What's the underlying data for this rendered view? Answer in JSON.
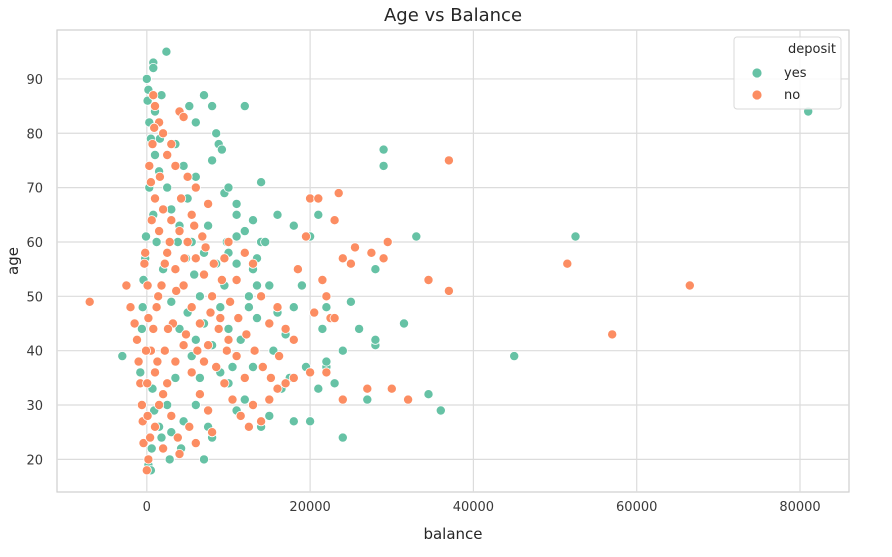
{
  "chart_data": {
    "type": "scatter",
    "title": "Age vs Balance",
    "xlabel": "balance",
    "ylabel": "age",
    "xlim": [
      -11000,
      86000
    ],
    "ylim": [
      14,
      99
    ],
    "xticks": [
      0,
      20000,
      40000,
      60000,
      80000
    ],
    "yticks": [
      20,
      30,
      40,
      50,
      60,
      70,
      80,
      90
    ],
    "grid": true,
    "legend": {
      "title": "deposit",
      "position": "top-right"
    },
    "colors": {
      "yes": "#66c2a5",
      "no": "#fc8d62"
    },
    "series": [
      {
        "name": "yes",
        "points": [
          [
            0,
            90
          ],
          [
            800,
            93
          ],
          [
            800,
            92
          ],
          [
            2400,
            95
          ],
          [
            200,
            88
          ],
          [
            1800,
            87
          ],
          [
            5200,
            85
          ],
          [
            7000,
            87
          ],
          [
            8000,
            85
          ],
          [
            12000,
            85
          ],
          [
            4000,
            84
          ],
          [
            6000,
            82
          ],
          [
            8500,
            80
          ],
          [
            8800,
            78
          ],
          [
            9200,
            77
          ],
          [
            8000,
            75
          ],
          [
            14000,
            71
          ],
          [
            9500,
            69
          ],
          [
            11000,
            67
          ],
          [
            16000,
            65
          ],
          [
            21000,
            65
          ],
          [
            20000,
            61
          ],
          [
            18000,
            63
          ],
          [
            13000,
            64
          ],
          [
            12000,
            62
          ],
          [
            14000,
            60
          ],
          [
            10000,
            58
          ],
          [
            11000,
            56
          ],
          [
            13000,
            55
          ],
          [
            15000,
            52
          ],
          [
            18000,
            48
          ],
          [
            22000,
            48
          ],
          [
            25000,
            49
          ],
          [
            28000,
            55
          ],
          [
            29000,
            77
          ],
          [
            29000,
            74
          ],
          [
            33000,
            61
          ],
          [
            52500,
            61
          ],
          [
            81000,
            84
          ],
          [
            45000,
            39
          ],
          [
            36000,
            29
          ],
          [
            34500,
            32
          ],
          [
            31500,
            45
          ],
          [
            27000,
            31
          ],
          [
            28000,
            41
          ],
          [
            28000,
            42
          ],
          [
            24000,
            40
          ],
          [
            24000,
            24
          ],
          [
            22000,
            37
          ],
          [
            21000,
            33
          ],
          [
            20000,
            27
          ],
          [
            23000,
            34
          ],
          [
            18000,
            27
          ],
          [
            15000,
            28
          ],
          [
            14000,
            26
          ],
          [
            12000,
            31
          ],
          [
            10000,
            34
          ],
          [
            9000,
            36
          ],
          [
            8000,
            24
          ],
          [
            7000,
            20
          ],
          [
            7500,
            26
          ],
          [
            -3000,
            39
          ],
          [
            -800,
            36
          ],
          [
            -600,
            44
          ],
          [
            -500,
            48
          ],
          [
            -400,
            53
          ],
          [
            200,
            19
          ],
          [
            500,
            18
          ],
          [
            600,
            22
          ],
          [
            1500,
            26
          ],
          [
            3000,
            25
          ],
          [
            4500,
            27
          ],
          [
            6000,
            30
          ],
          [
            10500,
            37
          ],
          [
            11500,
            42
          ],
          [
            13500,
            46
          ],
          [
            12500,
            50
          ],
          [
            9500,
            52
          ],
          [
            8500,
            56
          ],
          [
            7000,
            58
          ],
          [
            5500,
            60
          ],
          [
            4000,
            63
          ],
          [
            3000,
            66
          ],
          [
            2500,
            70
          ],
          [
            1500,
            73
          ],
          [
            1000,
            76
          ],
          [
            500,
            79
          ],
          [
            300,
            82
          ],
          [
            2000,
            80
          ],
          [
            3500,
            78
          ],
          [
            4500,
            74
          ],
          [
            6000,
            72
          ],
          [
            5000,
            68
          ],
          [
            16500,
            33
          ],
          [
            19500,
            37
          ],
          [
            17000,
            43
          ],
          [
            15500,
            40
          ],
          [
            13000,
            37
          ],
          [
            11000,
            29
          ],
          [
            10000,
            44
          ],
          [
            9000,
            48
          ],
          [
            8000,
            41
          ],
          [
            7000,
            45
          ],
          [
            6500,
            50
          ],
          [
            5800,
            54
          ],
          [
            4800,
            57
          ],
          [
            3800,
            60
          ],
          [
            14500,
            60
          ],
          [
            13500,
            52
          ],
          [
            16000,
            47
          ],
          [
            21500,
            44
          ],
          [
            19000,
            52
          ],
          [
            22000,
            38
          ],
          [
            26000,
            44
          ],
          [
            17500,
            35
          ],
          [
            12500,
            48
          ],
          [
            11000,
            61
          ],
          [
            9800,
            60
          ],
          [
            13500,
            57
          ],
          [
            6500,
            35
          ],
          [
            5500,
            39
          ],
          [
            4000,
            44
          ],
          [
            3000,
            49
          ],
          [
            2000,
            55
          ],
          [
            1200,
            60
          ],
          [
            800,
            65
          ],
          [
            300,
            70
          ],
          [
            -100,
            61
          ],
          [
            -200,
            57
          ],
          [
            100,
            86
          ],
          [
            1000,
            84
          ],
          [
            1600,
            79
          ],
          [
            7500,
            63
          ],
          [
            10000,
            70
          ],
          [
            11000,
            65
          ],
          [
            2500,
            30
          ],
          [
            3500,
            35
          ],
          [
            4200,
            22
          ],
          [
            2800,
            20
          ],
          [
            1800,
            24
          ],
          [
            900,
            29
          ],
          [
            700,
            33
          ],
          [
            5000,
            47
          ],
          [
            6000,
            42
          ]
        ]
      },
      {
        "name": "no",
        "points": [
          [
            -7000,
            49
          ],
          [
            -2500,
            52
          ],
          [
            -2000,
            48
          ],
          [
            -1500,
            45
          ],
          [
            -1200,
            42
          ],
          [
            -1000,
            38
          ],
          [
            -800,
            34
          ],
          [
            -600,
            30
          ],
          [
            -500,
            27
          ],
          [
            -400,
            23
          ],
          [
            -300,
            56
          ],
          [
            -200,
            58
          ],
          [
            0,
            18
          ],
          [
            200,
            20
          ],
          [
            400,
            24
          ],
          [
            800,
            87
          ],
          [
            1000,
            85
          ],
          [
            1500,
            82
          ],
          [
            2000,
            80
          ],
          [
            3000,
            78
          ],
          [
            4000,
            84
          ],
          [
            4500,
            83
          ],
          [
            2500,
            76
          ],
          [
            3500,
            74
          ],
          [
            5000,
            72
          ],
          [
            6000,
            70
          ],
          [
            7500,
            67
          ],
          [
            5500,
            65
          ],
          [
            10000,
            60
          ],
          [
            12000,
            58
          ],
          [
            13000,
            56
          ],
          [
            11000,
            53
          ],
          [
            14000,
            50
          ],
          [
            16000,
            48
          ],
          [
            15000,
            45
          ],
          [
            17000,
            44
          ],
          [
            18000,
            42
          ],
          [
            19500,
            61
          ],
          [
            18500,
            55
          ],
          [
            20000,
            68
          ],
          [
            21000,
            68
          ],
          [
            23500,
            69
          ],
          [
            23000,
            64
          ],
          [
            21500,
            53
          ],
          [
            22000,
            50
          ],
          [
            20500,
            47
          ],
          [
            22500,
            46
          ],
          [
            23000,
            46
          ],
          [
            25000,
            56
          ],
          [
            25500,
            59
          ],
          [
            24000,
            57
          ],
          [
            29500,
            60
          ],
          [
            29000,
            57
          ],
          [
            27500,
            58
          ],
          [
            37000,
            75
          ],
          [
            37000,
            51
          ],
          [
            34500,
            53
          ],
          [
            51500,
            56
          ],
          [
            66500,
            52
          ],
          [
            57000,
            43
          ],
          [
            32000,
            31
          ],
          [
            30000,
            33
          ],
          [
            27000,
            33
          ],
          [
            24000,
            31
          ],
          [
            22000,
            36
          ],
          [
            20000,
            36
          ],
          [
            18000,
            35
          ],
          [
            17000,
            34
          ],
          [
            16000,
            33
          ],
          [
            15000,
            31
          ],
          [
            14000,
            27
          ],
          [
            13000,
            30
          ],
          [
            12000,
            35
          ],
          [
            11000,
            39
          ],
          [
            10000,
            42
          ],
          [
            9000,
            46
          ],
          [
            8000,
            50
          ],
          [
            7000,
            54
          ],
          [
            6000,
            57
          ],
          [
            5000,
            60
          ],
          [
            4000,
            62
          ],
          [
            3000,
            64
          ],
          [
            2000,
            66
          ],
          [
            1000,
            68
          ],
          [
            500,
            71
          ],
          [
            1500,
            62
          ],
          [
            2500,
            58
          ],
          [
            3500,
            55
          ],
          [
            4500,
            52
          ],
          [
            5500,
            48
          ],
          [
            6500,
            45
          ],
          [
            7500,
            41
          ],
          [
            8500,
            37
          ],
          [
            9500,
            34
          ],
          [
            10500,
            31
          ],
          [
            11500,
            28
          ],
          [
            12500,
            26
          ],
          [
            8000,
            25
          ],
          [
            6000,
            23
          ],
          [
            4000,
            21
          ],
          [
            2000,
            22
          ],
          [
            1000,
            26
          ],
          [
            1500,
            30
          ],
          [
            2500,
            34
          ],
          [
            3500,
            38
          ],
          [
            4500,
            41
          ],
          [
            5500,
            36
          ],
          [
            6500,
            32
          ],
          [
            7500,
            29
          ],
          [
            3000,
            28
          ],
          [
            2000,
            32
          ],
          [
            1000,
            36
          ],
          [
            500,
            40
          ],
          [
            800,
            44
          ],
          [
            1200,
            48
          ],
          [
            1800,
            52
          ],
          [
            2200,
            56
          ],
          [
            2800,
            60
          ],
          [
            600,
            64
          ],
          [
            300,
            74
          ],
          [
            700,
            78
          ],
          [
            900,
            81
          ],
          [
            1600,
            72
          ],
          [
            4200,
            68
          ],
          [
            5800,
            63
          ],
          [
            7200,
            59
          ],
          [
            8200,
            56
          ],
          [
            9200,
            53
          ],
          [
            10200,
            49
          ],
          [
            11200,
            46
          ],
          [
            12200,
            43
          ],
          [
            13200,
            40
          ],
          [
            14200,
            37
          ],
          [
            15200,
            35
          ],
          [
            16200,
            39
          ],
          [
            3200,
            45
          ],
          [
            4800,
            43
          ],
          [
            2200,
            40
          ],
          [
            1300,
            38
          ],
          [
            6200,
            40
          ],
          [
            7000,
            38
          ],
          [
            8800,
            44
          ],
          [
            9800,
            40
          ],
          [
            5200,
            26
          ],
          [
            3800,
            24
          ],
          [
            2600,
            44
          ],
          [
            1400,
            50
          ],
          [
            3600,
            51
          ],
          [
            4600,
            57
          ],
          [
            200,
            46
          ],
          [
            100,
            52
          ],
          [
            -100,
            40
          ],
          [
            50,
            34
          ],
          [
            100,
            28
          ],
          [
            7800,
            47
          ],
          [
            6800,
            61
          ],
          [
            9500,
            57
          ]
        ]
      }
    ]
  }
}
